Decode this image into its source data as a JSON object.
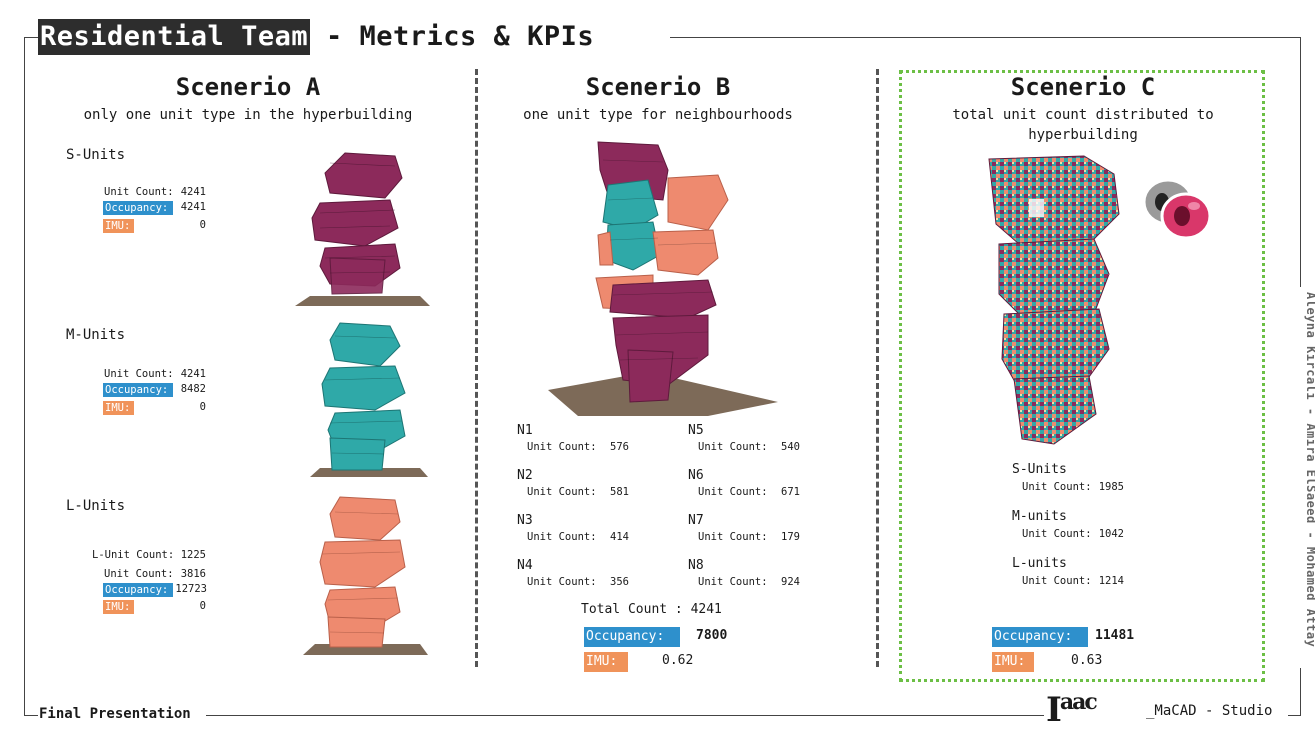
{
  "header": {
    "team": "Residential Team",
    "subtitle": "- Metrics & KPIs"
  },
  "footer": {
    "left": "Final Presentation",
    "logo_main": "I",
    "logo_sup": "aac",
    "right": "_MaCAD - Studio"
  },
  "credits": "Aleyna Kircali - Amira ElSaeed - Mohamed Attay",
  "colors": {
    "purple": "#8c2a5b",
    "teal": "#2fa9a8",
    "salmon": "#ee8a6f",
    "ground": "#7d6a58",
    "occupancy": "#2e90cc",
    "imu": "#f0935a",
    "highlight_border": "#6cbf45"
  },
  "scenario_a": {
    "title": "Scenerio A",
    "subtitle": "only one unit type in the hyperbuilding",
    "s_units": {
      "label": "S-Units",
      "unit_count_label": "Unit Count:",
      "unit_count": "4241",
      "occupancy_label": "Occupancy:",
      "occupancy": "4241",
      "imu_label": "IMU:",
      "imu": "0"
    },
    "m_units": {
      "label": "M-Units",
      "unit_count_label": "Unit Count:",
      "unit_count": "4241",
      "occupancy_label": "Occupancy:",
      "occupancy": "8482",
      "imu_label": "IMU:",
      "imu": "0"
    },
    "l_units": {
      "label": "L-Units",
      "l_unit_count_label": "L-Unit Count:",
      "l_unit_count": "1225",
      "unit_count_label": "Unit Count:",
      "unit_count": "3816",
      "occupancy_label": "Occupancy:",
      "occupancy": "12723",
      "imu_label": "IMU:",
      "imu": "0"
    }
  },
  "scenario_b": {
    "title": "Scenerio B",
    "subtitle": "one unit type for neighbourhoods",
    "unit_count_label": "Unit Count:",
    "neighbourhoods": [
      {
        "name": "N1",
        "count": "576"
      },
      {
        "name": "N2",
        "count": "581"
      },
      {
        "name": "N3",
        "count": "414"
      },
      {
        "name": "N4",
        "count": "356"
      },
      {
        "name": "N5",
        "count": "540"
      },
      {
        "name": "N6",
        "count": "671"
      },
      {
        "name": "N7",
        "count": "179"
      },
      {
        "name": "N8",
        "count": "924"
      }
    ],
    "total_label": "Total Count : 4241",
    "occupancy_label": "Occupancy:",
    "occupancy": "7800",
    "imu_label": "IMU:",
    "imu": "0.62"
  },
  "scenario_c": {
    "title": "Scenerio C",
    "subtitle": "total unit count distributed to hyperbuilding",
    "unit_count_label": "Unit Count:",
    "s_units": {
      "label": "S-Units",
      "count": "1985"
    },
    "m_units": {
      "label": "M-units",
      "count": "1042"
    },
    "l_units": {
      "label": "L-units",
      "count": "1214"
    },
    "occupancy_label": "Occupancy:",
    "occupancy": "11481",
    "imu_label": "IMU:",
    "imu": "0.63",
    "plugin_icon": "rhino-grasshopper-icon"
  }
}
